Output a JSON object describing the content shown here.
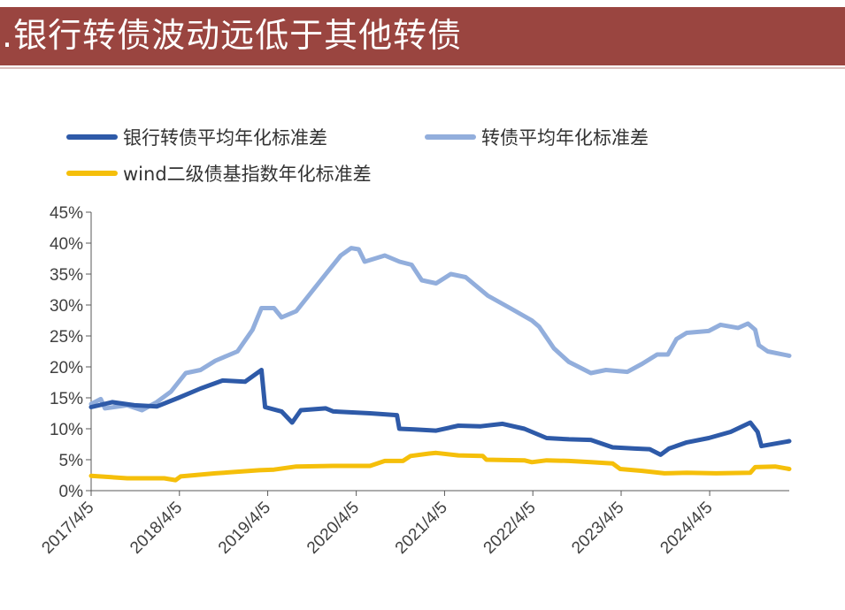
{
  "header": {
    "title": ".银行转债波动远低于其他转债"
  },
  "colors": {
    "banner": "#9a4540",
    "bank": "#2e5aa8",
    "cb": "#92aedc",
    "wind": "#f5bf0a"
  },
  "chart_data": {
    "type": "line",
    "title": "",
    "xlabel": "",
    "ylabel": "",
    "x_tick_labels": [
      "2017/4/5",
      "2018/4/5",
      "2019/4/5",
      "2020/4/5",
      "2021/4/5",
      "2022/4/5",
      "2023/4/5",
      "2024/4/5"
    ],
    "x_range": [
      "2017/4/5",
      "2025/2/28"
    ],
    "y_tick_labels": [
      "0%",
      "5%",
      "10%",
      "15%",
      "20%",
      "25%",
      "30%",
      "35%",
      "40%",
      "45%"
    ],
    "ylim": [
      0,
      45
    ],
    "y_unit": "%",
    "grid": false,
    "legend_position": "top",
    "series": [
      {
        "name": "银行转债平均年化标准差",
        "color": "#2e5aa8",
        "points": [
          [
            "2017/4/5",
            13.5
          ],
          [
            "2017/7/1",
            14.3
          ],
          [
            "2017/10/1",
            13.8
          ],
          [
            "2018/1/1",
            13.6
          ],
          [
            "2018/4/1",
            15.0
          ],
          [
            "2018/7/1",
            16.5
          ],
          [
            "2018/10/1",
            17.8
          ],
          [
            "2019/1/1",
            17.6
          ],
          [
            "2019/3/10",
            19.5
          ],
          [
            "2019/3/25",
            13.5
          ],
          [
            "2019/6/1",
            12.8
          ],
          [
            "2019/7/15",
            11.0
          ],
          [
            "2019/8/20",
            13.0
          ],
          [
            "2019/12/1",
            13.3
          ],
          [
            "2020/1/1",
            12.8
          ],
          [
            "2020/6/1",
            12.5
          ],
          [
            "2020/9/20",
            12.2
          ],
          [
            "2020/9/30",
            10.0
          ],
          [
            "2020/12/1",
            9.9
          ],
          [
            "2021/3/1",
            9.7
          ],
          [
            "2021/6/1",
            10.5
          ],
          [
            "2021/9/1",
            10.4
          ],
          [
            "2021/12/1",
            10.8
          ],
          [
            "2022/3/1",
            10.0
          ],
          [
            "2022/6/1",
            8.5
          ],
          [
            "2022/9/1",
            8.3
          ],
          [
            "2022/12/1",
            8.2
          ],
          [
            "2023/3/1",
            7.0
          ],
          [
            "2023/6/1",
            6.8
          ],
          [
            "2023/8/1",
            6.7
          ],
          [
            "2023/9/15",
            5.8
          ],
          [
            "2023/10/20",
            6.8
          ],
          [
            "2024/1/1",
            7.8
          ],
          [
            "2024/4/1",
            8.5
          ],
          [
            "2024/7/1",
            9.5
          ],
          [
            "2024/9/20",
            11.0
          ],
          [
            "2024/10/20",
            9.5
          ],
          [
            "2024/11/5",
            7.2
          ],
          [
            "2025/2/28",
            8.0
          ]
        ]
      },
      {
        "name": "转债平均年化标准差",
        "color": "#92aedc",
        "points": [
          [
            "2017/4/5",
            14.0
          ],
          [
            "2017/5/15",
            14.8
          ],
          [
            "2017/6/1",
            13.3
          ],
          [
            "2017/9/1",
            13.8
          ],
          [
            "2017/11/1",
            13.0
          ],
          [
            "2018/1/1",
            14.3
          ],
          [
            "2018/3/1",
            16.0
          ],
          [
            "2018/5/1",
            19.0
          ],
          [
            "2018/7/1",
            19.5
          ],
          [
            "2018/9/1",
            21.0
          ],
          [
            "2018/12/1",
            22.5
          ],
          [
            "2019/2/1",
            26.0
          ],
          [
            "2019/3/10",
            29.5
          ],
          [
            "2019/5/1",
            29.5
          ],
          [
            "2019/6/1",
            28.0
          ],
          [
            "2019/8/1",
            29.0
          ],
          [
            "2019/10/1",
            32.0
          ],
          [
            "2019/12/1",
            35.0
          ],
          [
            "2020/2/1",
            38.0
          ],
          [
            "2020/3/15",
            39.2
          ],
          [
            "2020/4/15",
            39.0
          ],
          [
            "2020/5/10",
            37.0
          ],
          [
            "2020/8/1",
            38.0
          ],
          [
            "2020/10/1",
            37.0
          ],
          [
            "2020/11/20",
            36.5
          ],
          [
            "2021/1/1",
            34.0
          ],
          [
            "2021/3/1",
            33.5
          ],
          [
            "2021/5/1",
            35.0
          ],
          [
            "2021/7/1",
            34.5
          ],
          [
            "2021/10/1",
            31.5
          ],
          [
            "2022/1/1",
            29.5
          ],
          [
            "2022/4/1",
            27.5
          ],
          [
            "2022/5/1",
            26.5
          ],
          [
            "2022/7/1",
            23.0
          ],
          [
            "2022/9/1",
            20.8
          ],
          [
            "2022/12/1",
            19.0
          ],
          [
            "2023/2/1",
            19.5
          ],
          [
            "2023/5/1",
            19.2
          ],
          [
            "2023/7/1",
            20.5
          ],
          [
            "2023/9/1",
            22.0
          ],
          [
            "2023/10/15",
            22.0
          ],
          [
            "2023/11/20",
            24.5
          ],
          [
            "2024/1/1",
            25.5
          ],
          [
            "2024/4/1",
            25.8
          ],
          [
            "2024/5/20",
            26.8
          ],
          [
            "2024/8/1",
            26.3
          ],
          [
            "2024/9/10",
            27.0
          ],
          [
            "2024/10/10",
            26.0
          ],
          [
            "2024/10/25",
            23.5
          ],
          [
            "2024/12/1",
            22.5
          ],
          [
            "2025/2/28",
            21.8
          ]
        ]
      },
      {
        "name": "wind二级债基指数年化标准差",
        "color": "#f5bf0a",
        "points": [
          [
            "2017/4/5",
            2.4
          ],
          [
            "2017/9/1",
            2.0
          ],
          [
            "2018/2/1",
            2.0
          ],
          [
            "2018/3/20",
            1.7
          ],
          [
            "2018/4/10",
            2.3
          ],
          [
            "2018/9/1",
            2.8
          ],
          [
            "2019/3/1",
            3.3
          ],
          [
            "2019/5/1",
            3.4
          ],
          [
            "2019/8/1",
            3.9
          ],
          [
            "2020/1/1",
            4.0
          ],
          [
            "2020/6/1",
            4.0
          ],
          [
            "2020/8/1",
            4.8
          ],
          [
            "2020/10/15",
            4.8
          ],
          [
            "2020/11/15",
            5.6
          ],
          [
            "2021/2/1",
            6.0
          ],
          [
            "2021/3/1",
            6.1
          ],
          [
            "2021/6/1",
            5.7
          ],
          [
            "2021/9/10",
            5.6
          ],
          [
            "2021/9/25",
            5.0
          ],
          [
            "2022/3/1",
            4.9
          ],
          [
            "2022/4/1",
            4.6
          ],
          [
            "2022/6/1",
            4.9
          ],
          [
            "2022/9/1",
            4.8
          ],
          [
            "2022/12/1",
            4.6
          ],
          [
            "2023/3/1",
            4.4
          ],
          [
            "2023/4/1",
            3.5
          ],
          [
            "2023/7/1",
            3.2
          ],
          [
            "2023/10/1",
            2.8
          ],
          [
            "2024/1/1",
            2.9
          ],
          [
            "2024/5/1",
            2.8
          ],
          [
            "2024/9/20",
            2.9
          ],
          [
            "2024/10/10",
            3.8
          ],
          [
            "2025/1/1",
            3.9
          ],
          [
            "2025/2/28",
            3.5
          ]
        ]
      }
    ]
  }
}
